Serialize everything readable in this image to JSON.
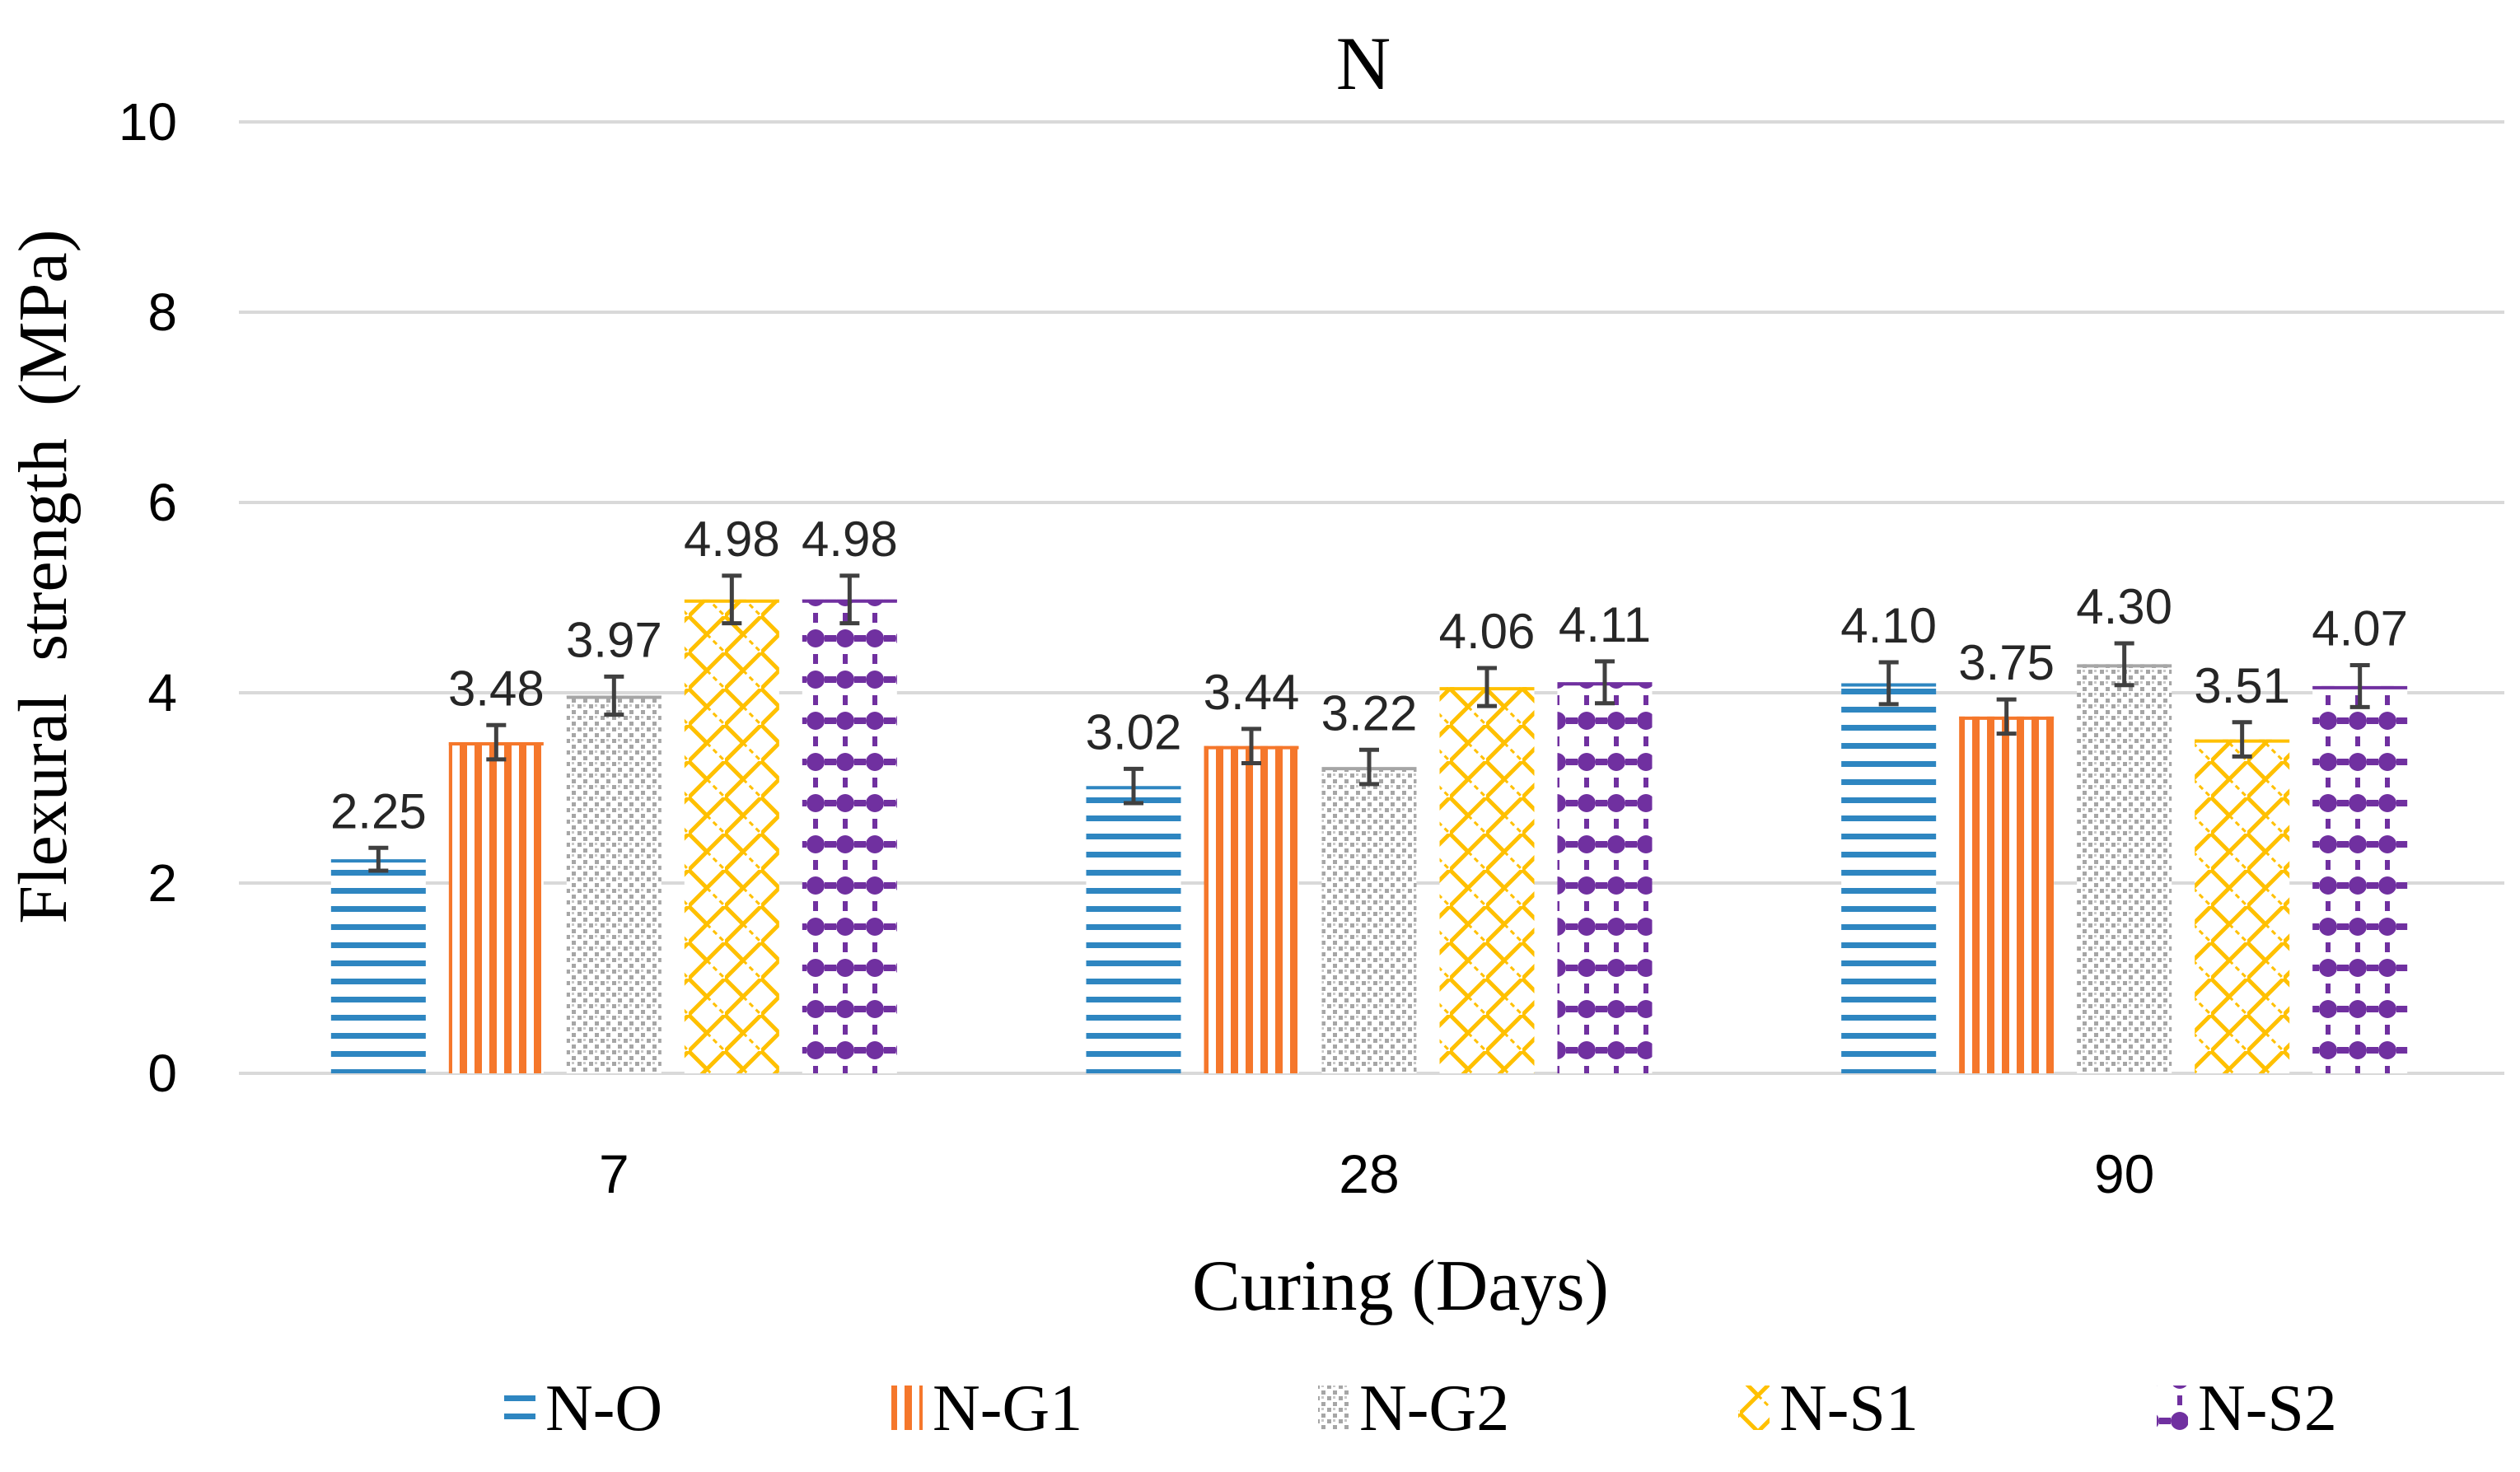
{
  "chart_data": {
    "type": "bar",
    "title": "N",
    "xlabel": "Curing (Days)",
    "ylabel": "Flexural strength (MPa)",
    "ylim": [
      0,
      10
    ],
    "yticks": [
      0,
      2,
      4,
      6,
      8,
      10
    ],
    "grid": true,
    "legend_position": "bottom",
    "categories": [
      "7",
      "28",
      "90"
    ],
    "series": [
      {
        "name": "N-O",
        "values": [
          2.25,
          3.02,
          4.1
        ],
        "errors": [
          0.12,
          0.18,
          0.22
        ],
        "color": "#2E86C1",
        "pattern": "hlines"
      },
      {
        "name": "N-G1",
        "values": [
          3.48,
          3.44,
          3.75
        ],
        "errors": [
          0.18,
          0.18,
          0.18
        ],
        "color": "#F5772B",
        "pattern": "vlines"
      },
      {
        "name": "N-G2",
        "values": [
          3.97,
          3.22,
          4.3
        ],
        "errors": [
          0.2,
          0.18,
          0.22
        ],
        "color": "#A6A6A6",
        "pattern": "dots"
      },
      {
        "name": "N-S1",
        "values": [
          4.98,
          4.06,
          3.51
        ],
        "errors": [
          0.25,
          0.2,
          0.18
        ],
        "color": "#FFC000",
        "pattern": "zigzag"
      },
      {
        "name": "N-S2",
        "values": [
          4.98,
          4.11,
          4.07
        ],
        "errors": [
          0.25,
          0.22,
          0.22
        ],
        "color": "#7030A0",
        "pattern": "beads"
      }
    ],
    "data_labels": [
      [
        "2.25",
        "3.02",
        "4.10"
      ],
      [
        "3.48",
        "3.44",
        "3.75"
      ],
      [
        "3.97",
        "3.22",
        "4.30"
      ],
      [
        "4.98",
        "4.06",
        "3.51"
      ],
      [
        "4.98",
        "4.11",
        "4.07"
      ]
    ]
  }
}
